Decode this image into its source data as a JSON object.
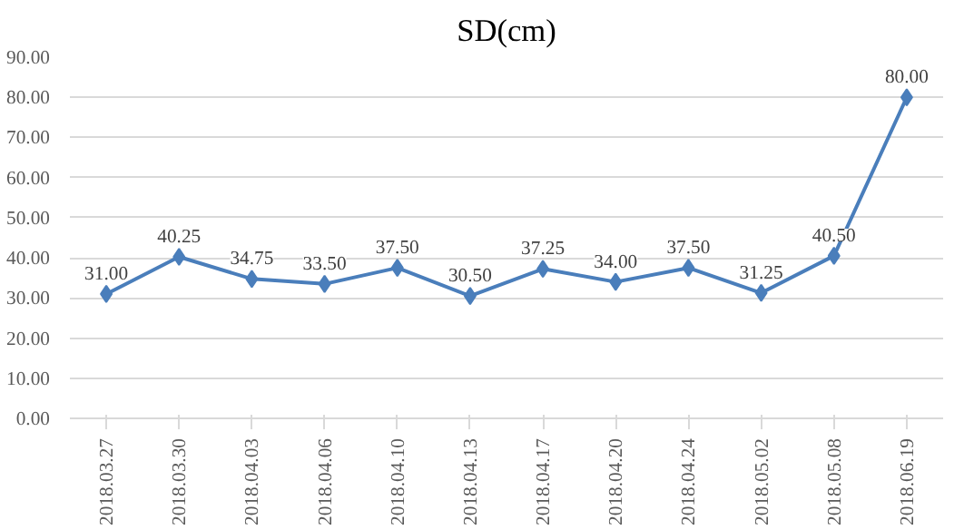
{
  "chart_data": {
    "type": "line",
    "title": "SD(cm)",
    "categories": [
      "2018.03.27",
      "2018.03.30",
      "2018.04.03",
      "2018.04.06",
      "2018.04.10",
      "2018.04.13",
      "2018.04.17",
      "2018.04.20",
      "2018.04.24",
      "2018.05.02",
      "2018.05.08",
      "2018.06.19"
    ],
    "values": [
      31,
      40.25,
      34.75,
      33.5,
      37.5,
      30.5,
      37.25,
      34,
      37.5,
      31.25,
      40.5,
      80
    ],
    "value_labels": [
      "31.00",
      "40.25",
      "34.75",
      "33.50",
      "37.50",
      "30.50",
      "37.25",
      "34.00",
      "37.50",
      "31.25",
      "40.50",
      "80.00"
    ],
    "color": "#4a7ebb",
    "marker": "diamond",
    "line_style": "solid",
    "grid": "y",
    "ylim": [
      0,
      90
    ],
    "yticks": [
      {
        "value": 0,
        "label": "0.00"
      },
      {
        "value": 10,
        "label": "10.00"
      },
      {
        "value": 20,
        "label": "20.00"
      },
      {
        "value": 30,
        "label": "30.00"
      },
      {
        "value": 40,
        "label": "40.00"
      },
      {
        "value": 50,
        "label": "50.00"
      },
      {
        "value": 60,
        "label": "60.00"
      },
      {
        "value": 70,
        "label": "70.00"
      },
      {
        "value": 80,
        "label": "80.00"
      },
      {
        "value": 90,
        "label": "90.00"
      }
    ]
  }
}
